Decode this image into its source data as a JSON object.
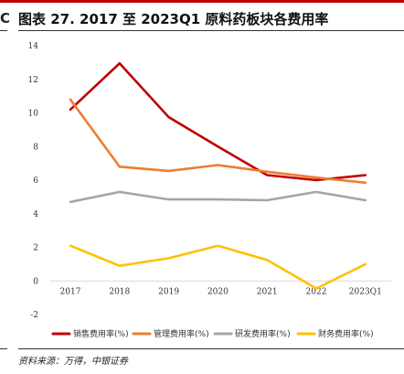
{
  "page": {
    "edge_glyph": "C",
    "title": "图表 27. 2017 至 2023Q1 原料药板块各费用率",
    "source": "资料来源：万得，中银证券"
  },
  "colors": {
    "accent_rule": "#c00000",
    "axis": "#d9d9d9"
  },
  "chart_data": {
    "type": "line",
    "categories": [
      "2017",
      "2018",
      "2019",
      "2020",
      "2021",
      "2022",
      "2023Q1"
    ],
    "ylim": [
      -2,
      14
    ],
    "yticks": [
      -2,
      0,
      2,
      4,
      6,
      8,
      10,
      12,
      14
    ],
    "grid": false,
    "legend_position": "bottom",
    "series": [
      {
        "name": "销售费用率(%)",
        "color": "#c00000",
        "values": [
          10.2,
          12.95,
          9.75,
          8.0,
          6.3,
          6.0,
          6.3
        ]
      },
      {
        "name": "管理费用率(%)",
        "color": "#ed7d31",
        "values": [
          10.8,
          6.8,
          6.55,
          6.9,
          6.5,
          6.15,
          5.85
        ]
      },
      {
        "name": "研发费用率(%)",
        "color": "#a5a5a5",
        "values": [
          4.7,
          5.3,
          4.85,
          4.85,
          4.8,
          5.3,
          4.8
        ]
      },
      {
        "name": "财务费用率(%)",
        "color": "#ffc000",
        "values": [
          2.1,
          0.9,
          1.35,
          2.1,
          1.25,
          -0.45,
          1.0
        ]
      }
    ]
  }
}
